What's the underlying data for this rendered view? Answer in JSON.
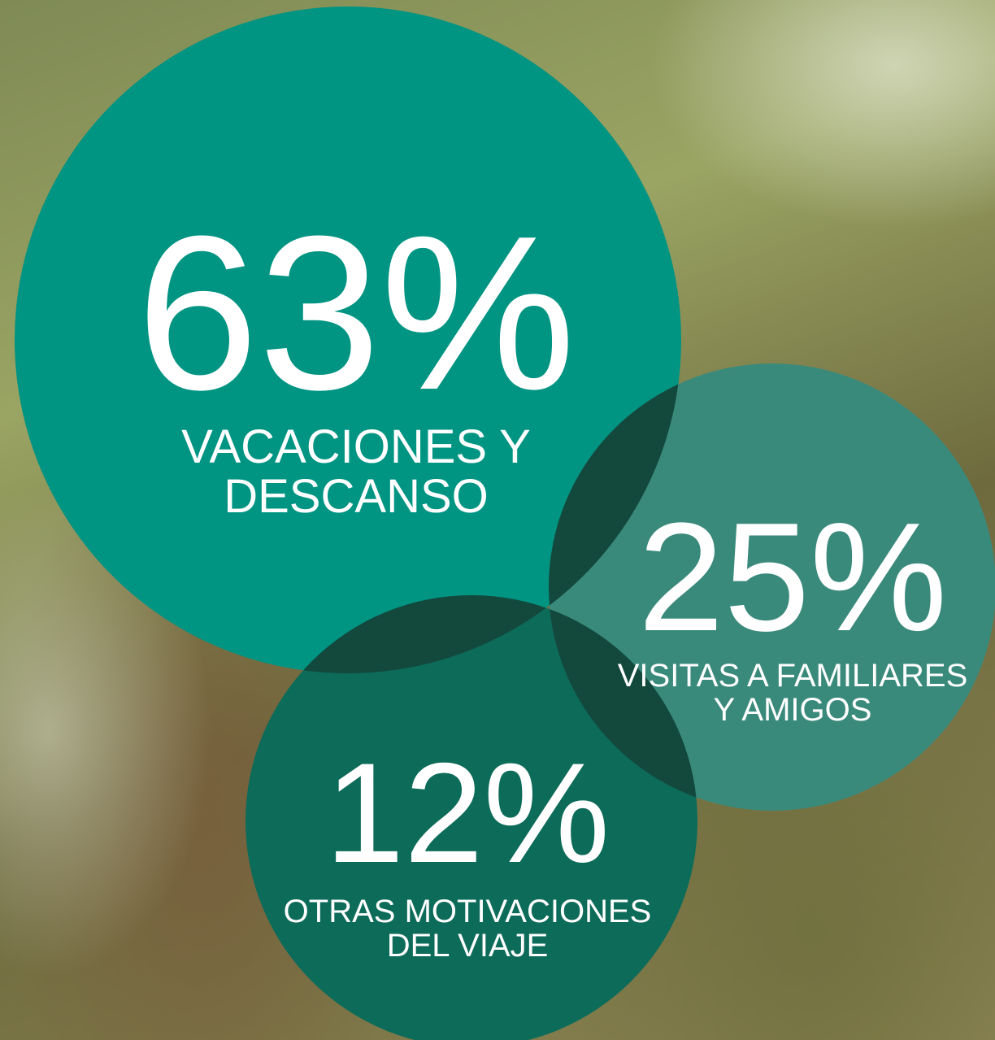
{
  "chart_data": {
    "type": "bubble",
    "categories": [
      "VACACIONES Y DESCANSO",
      "VISITAS A FAMILIARES Y AMIGOS",
      "OTRAS MOTIVACIONES DEL VIAJE"
    ],
    "values": [
      63,
      25,
      12
    ],
    "value_labels": [
      "63%",
      "25%",
      "12%"
    ],
    "colors": [
      "#009482",
      "#3a8a7c",
      "#0d6b59"
    ],
    "overlap_color": "#13483d"
  }
}
